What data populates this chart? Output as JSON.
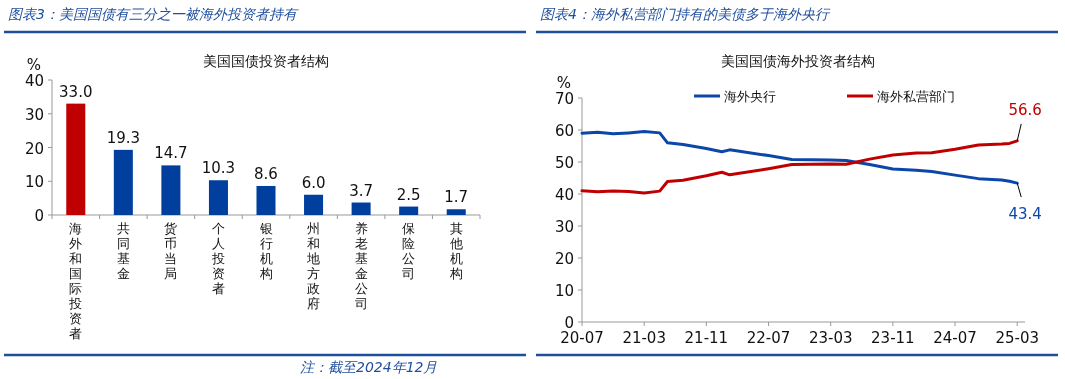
{
  "chart_data": [
    {
      "type": "bar",
      "title": "图表3：美国国债有三分之一被海外投资者持有",
      "subtitle": "美国国债投资者结构",
      "ylabel": "%",
      "categories": [
        "海外和国际投资者",
        "共同基金",
        "货币当局",
        "个人投资者",
        "银行机构",
        "州和地方政府",
        "养老基金公司",
        "保险公司",
        "其他机构"
      ],
      "values": [
        33.0,
        19.3,
        14.7,
        10.3,
        8.6,
        6.0,
        3.7,
        2.5,
        1.7
      ],
      "colors": [
        "#c00000",
        "#003f9e",
        "#003f9e",
        "#003f9e",
        "#003f9e",
        "#003f9e",
        "#003f9e",
        "#003f9e",
        "#003f9e"
      ],
      "ylim": [
        0,
        40
      ],
      "yticks": [
        0,
        10,
        20,
        30,
        40
      ],
      "value_labels": [
        "33.0",
        "19.3",
        "14.7",
        "10.3",
        "8.6",
        "6.0",
        "3.7",
        "2.5",
        "1.7"
      ],
      "grid": false,
      "annotations": [
        "注：截至2024年12月"
      ]
    },
    {
      "type": "line",
      "title": "图表4：海外私营部门持有的美债多于海外央行",
      "subtitle": "美国国债海外投资者结构",
      "ylabel": "%",
      "x": [
        "2020-07",
        "2020-09",
        "2020-11",
        "2021-01",
        "2021-03",
        "2021-05",
        "2021-06",
        "2021-08",
        "2021-11",
        "2022-01",
        "2022-02",
        "2022-07",
        "2022-10",
        "2023-03",
        "2023-05",
        "2023-08",
        "2023-11",
        "2024-02",
        "2024-04",
        "2024-07",
        "2024-10",
        "2025-01",
        "2025-02",
        "2025-03"
      ],
      "series": [
        {
          "name": "海外央行",
          "color": "#0b47a8",
          "values": [
            59.0,
            59.3,
            58.8,
            59.1,
            59.5,
            59.1,
            56.0,
            55.5,
            54.2,
            53.2,
            53.8,
            52.0,
            50.8,
            50.6,
            50.5,
            49.2,
            47.8,
            47.4,
            47.0,
            45.9,
            44.8,
            44.4,
            44.0,
            43.4
          ],
          "value_labels": [
            null,
            null,
            null,
            null,
            null,
            null,
            null,
            null,
            null,
            null,
            null,
            null,
            null,
            null,
            null,
            null,
            null,
            null,
            null,
            null,
            null,
            null,
            null,
            "43.4"
          ]
        },
        {
          "name": "海外私营部门",
          "color": "#c00000",
          "values": [
            41.0,
            40.7,
            40.9,
            40.8,
            40.3,
            40.9,
            43.9,
            44.3,
            45.7,
            46.8,
            46.0,
            47.9,
            49.2,
            49.4,
            49.3,
            50.9,
            52.2,
            52.8,
            52.9,
            54.0,
            55.3,
            55.6,
            55.8,
            56.6
          ],
          "value_labels": [
            null,
            null,
            null,
            null,
            null,
            null,
            null,
            null,
            null,
            null,
            null,
            null,
            null,
            null,
            null,
            null,
            null,
            null,
            null,
            null,
            null,
            null,
            null,
            "56.6"
          ]
        }
      ],
      "xlim": [
        "2020-07",
        "2025-04"
      ],
      "xticks": [
        {
          "value": "2020-07",
          "label": "20-07"
        },
        {
          "value": "2021-03",
          "label": "21-03"
        },
        {
          "value": "2021-11",
          "label": "21-11"
        },
        {
          "value": "2022-07",
          "label": "22-07"
        },
        {
          "value": "2023-03",
          "label": "23-03"
        },
        {
          "value": "2023-11",
          "label": "23-11"
        },
        {
          "value": "2024-07",
          "label": "24-07"
        },
        {
          "value": "2025-03",
          "label": "25-03"
        }
      ],
      "ylim": [
        0,
        70
      ],
      "yticks": [
        0,
        10,
        20,
        30,
        40,
        50,
        60,
        70
      ],
      "legend": "top",
      "grid": false,
      "marker": "none",
      "line_style": "solid"
    }
  ]
}
